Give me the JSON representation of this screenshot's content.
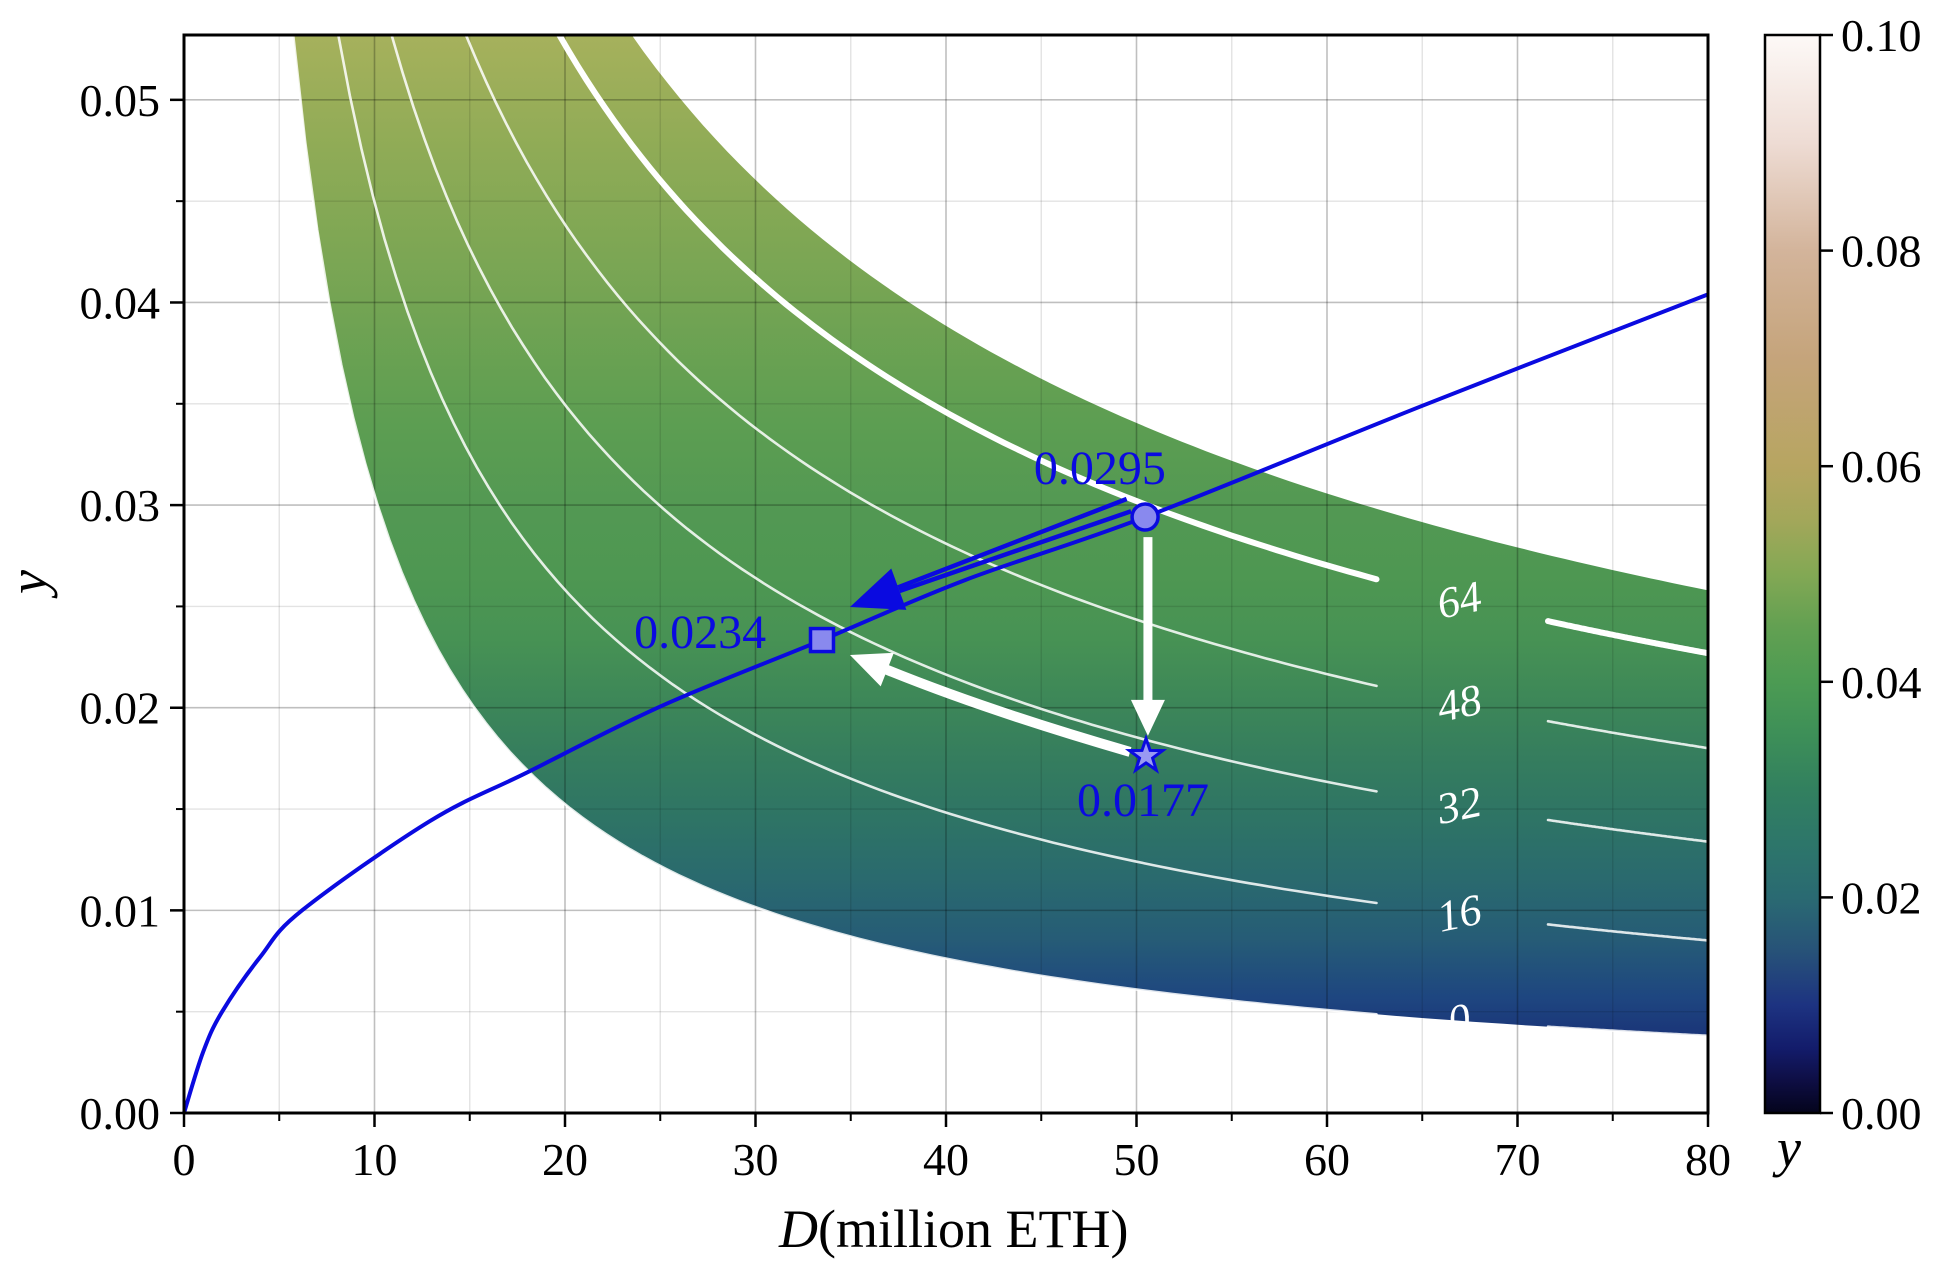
{
  "chart_data": {
    "type": "area",
    "subtype": "contour-band-with-curve",
    "title": "",
    "xlabel_var": "D",
    "xlabel_rest": " (million ETH)",
    "ylabel": "y",
    "colorbar_label": "y",
    "xlim": [
      0,
      80
    ],
    "ylim": [
      0,
      0.0532
    ],
    "grid": "on",
    "x_major_ticks": [
      0,
      10,
      20,
      30,
      40,
      50,
      60,
      70,
      80
    ],
    "x_tick_labels": [
      "0",
      "10",
      "20",
      "30",
      "40",
      "50",
      "60",
      "70",
      "80"
    ],
    "x_minor_step": 5,
    "y_major_ticks": [
      0.0,
      0.01,
      0.02,
      0.03,
      0.04,
      0.05
    ],
    "y_tick_labels": [
      "0.00",
      "0.01",
      "0.02",
      "0.03",
      "0.04",
      "0.05"
    ],
    "y_minor_step": 0.005,
    "band": {
      "description": "shaded region between contour 0 (lower) and upper boundary, colored by y with gist-earth colormap",
      "top_boundary": {
        "D_at_ytop": 23.5,
        "p": 0.591
      },
      "contours": [
        {
          "label": "0",
          "D_at_ytop": 5.73,
          "p": 1.0,
          "lw": 2.6,
          "opacity": 0.85
        },
        {
          "label": "16",
          "D_at_ytop": 8.1,
          "p": 0.8,
          "lw": 2.6,
          "opacity": 0.85
        },
        {
          "label": "32",
          "D_at_ytop": 10.9,
          "p": 0.692,
          "lw": 2.6,
          "opacity": 0.85
        },
        {
          "label": "48",
          "D_at_ytop": 14.8,
          "p": 0.642,
          "lw": 2.6,
          "opacity": 0.85
        },
        {
          "label": "64",
          "D_at_ytop": 19.7,
          "p": 0.608,
          "lw": 6.0,
          "opacity": 1.0
        }
      ],
      "contour_label_D": 67.1,
      "contour_label_gap_D": [
        62.6,
        71.6
      ],
      "contour_label_color": "#ffffff",
      "contour_line_color": "#ffffff"
    },
    "supply_curve": {
      "color": "#0a0ae0",
      "lw": 4,
      "points": [
        [
          0,
          0
        ],
        [
          1,
          0.003
        ],
        [
          2,
          0.005
        ],
        [
          4,
          0.0077
        ],
        [
          6.2,
          0.01
        ],
        [
          12.9,
          0.0144
        ],
        [
          18,
          0.0168
        ],
        [
          25.1,
          0.0201
        ],
        [
          33.49,
          0.02334
        ],
        [
          41,
          0.0263
        ],
        [
          50.45,
          0.02941
        ],
        [
          65,
          0.0349
        ],
        [
          80,
          0.0404
        ]
      ]
    },
    "markers": [
      {
        "shape": "circle",
        "D": 50.45,
        "y": 0.02941,
        "face": "#8989ee",
        "edge": "#0a0ae0"
      },
      {
        "shape": "square",
        "D": 33.49,
        "y": 0.02334,
        "face": "#8989ee",
        "edge": "#0a0ae0"
      },
      {
        "shape": "star",
        "D": 50.5,
        "y": 0.01762,
        "face": "#9a9af2",
        "edge": "#0a0ae0"
      }
    ],
    "annotations": [
      {
        "text": "0.0295",
        "D": 48.08,
        "y": 0.03183,
        "color": "#0a0ae0"
      },
      {
        "text": "0.0234",
        "D": 27.09,
        "y": 0.02374,
        "color": "#0a0ae0"
      },
      {
        "text": "0.0177",
        "D": 50.34,
        "y": 0.01545,
        "color": "#0a0ae0"
      }
    ],
    "arrows": [
      {
        "kind": "blue-open-shaft",
        "color": "#0a0ae0",
        "from": [
          49.6,
          0.03
        ],
        "to": [
          34.96,
          0.02497
        ]
      },
      {
        "kind": "white-straight",
        "color": "#ffffff",
        "from": [
          50.6,
          0.02842
        ],
        "to": [
          50.6,
          0.01861
        ]
      },
      {
        "kind": "white-curved",
        "color": "#ffffff",
        "from": [
          49.66,
          0.01782
        ],
        "ctrl": [
          42.05,
          0.01989
        ],
        "to": [
          34.96,
          0.0226
        ]
      }
    ],
    "fill_gradient_stops": [
      [
        0.0,
        "#0a0a36"
      ],
      [
        0.016,
        "#101048"
      ],
      [
        0.032,
        "#141c5e"
      ],
      [
        0.07,
        "#1a3478"
      ],
      [
        0.107,
        "#1e4680"
      ],
      [
        0.162,
        "#265c76"
      ],
      [
        0.218,
        "#2a6a6e"
      ],
      [
        0.273,
        "#2e7465"
      ],
      [
        0.329,
        "#357d5e"
      ],
      [
        0.383,
        "#3d8758"
      ],
      [
        0.44,
        "#479254"
      ],
      [
        0.498,
        "#4e9752"
      ],
      [
        0.555,
        "#529853"
      ],
      [
        0.643,
        "#5d9e52"
      ],
      [
        0.754,
        "#74a453"
      ],
      [
        0.893,
        "#8fab56"
      ],
      [
        1.0,
        "#a6b15c"
      ]
    ],
    "colorbar": {
      "range": [
        0.0,
        0.1
      ],
      "ticks": [
        0.0,
        0.02,
        0.04,
        0.06,
        0.08,
        0.1
      ],
      "tick_labels": [
        "0.00",
        "0.02",
        "0.04",
        "0.06",
        "0.08",
        "0.10"
      ],
      "label": "y",
      "gradient_stops": [
        [
          0.0,
          "#04041c"
        ],
        [
          0.03,
          "#0e0e44"
        ],
        [
          0.06,
          "#131c6b"
        ],
        [
          0.1,
          "#1d3381"
        ],
        [
          0.15,
          "#275278"
        ],
        [
          0.2,
          "#2a6a72"
        ],
        [
          0.25,
          "#2d766a"
        ],
        [
          0.3,
          "#32805f"
        ],
        [
          0.35,
          "#3d8f58"
        ],
        [
          0.4,
          "#4c9b53"
        ],
        [
          0.45,
          "#62a052"
        ],
        [
          0.5,
          "#83a854"
        ],
        [
          0.55,
          "#a3a75a"
        ],
        [
          0.6,
          "#b7a561"
        ],
        [
          0.7,
          "#c5a47b"
        ],
        [
          0.8,
          "#d3b49b"
        ],
        [
          0.9,
          "#eedcd4"
        ],
        [
          1.0,
          "#fdf9f7"
        ]
      ]
    },
    "colors": {
      "blue": "#0a0ae0",
      "spine": "#000000",
      "grid_major": "rgba(0,0,0,0.25)",
      "grid_minor": "rgba(0,0,0,0.11)",
      "background": "#ffffff"
    }
  }
}
